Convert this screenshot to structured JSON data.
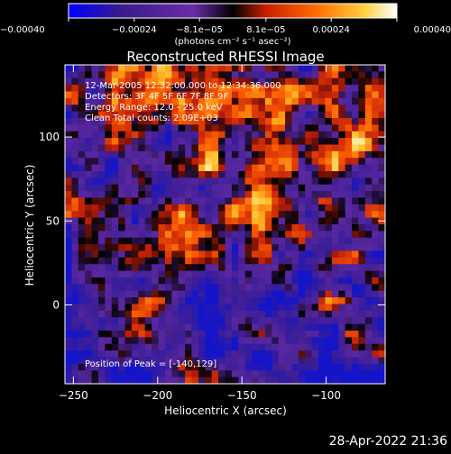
{
  "chart_data": {
    "type": "heatmap",
    "title": "Reconstructed RHESSI Image",
    "xlabel": "Heliocentric X (arcsec)",
    "ylabel": "Heliocentric Y (arcsec)",
    "xlim": [
      -255,
      -65
    ],
    "ylim": [
      -47,
      143
    ],
    "x_ticks": [
      -250,
      -200,
      -150,
      -100
    ],
    "x_tick_labels": [
      "−250",
      "−200",
      "−150",
      "−100"
    ],
    "y_ticks": [
      0,
      50,
      100
    ],
    "y_tick_labels": [
      "0",
      "50",
      "100"
    ],
    "colorbar": {
      "min": -0.0004,
      "max": 0.0004,
      "ticks": [
        -0.0004,
        -0.00024,
        -8.1e-05,
        8.1e-05,
        0.00024,
        0.0004
      ],
      "tick_labels": [
        "−0.00040",
        "−0.00024",
        "−8.1e−05",
        "8.1e−05",
        "0.00024",
        "0.00040"
      ],
      "units_label": "(photons cm⁻² s⁻¹ asec⁻²)",
      "colors": [
        "#0000ff",
        "#3a1a8c",
        "#6a2ca8",
        "#000000",
        "#c81e00",
        "#ff6a00",
        "#ffd040",
        "#ffffff"
      ]
    },
    "annotations": {
      "time_range": "12-Mar-2005 12:32:00.000 to 12:34:36.000",
      "detectors": "Detectors: 3F 4F 5F 6F 7F 8F 9F",
      "energy": "Energy Range: 12.0 - 25.0 keV",
      "method": "Clean    Total counts: 2.09E+03",
      "peak": "Position of Peak = [-140,129]"
    },
    "grid": false,
    "legend": "none"
  },
  "footer": {
    "timestamp": "28-Apr-2022 21:36"
  }
}
